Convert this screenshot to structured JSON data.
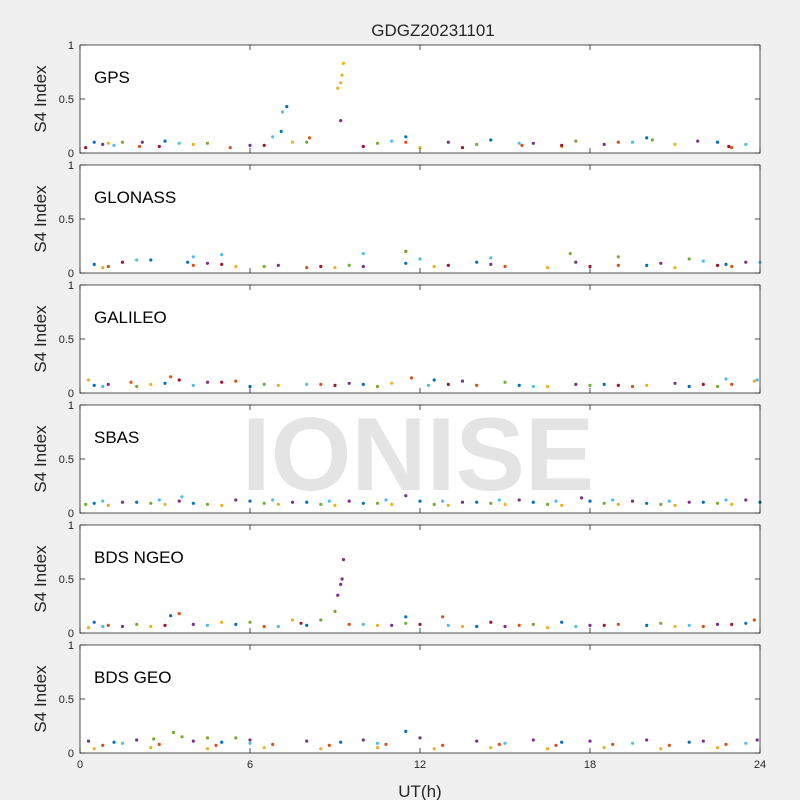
{
  "figure": {
    "title": "GDGZ20231101",
    "xlabel": "UT(h)",
    "watermark": "IONISE",
    "background": "#f0f0f0",
    "axes_background": "#ffffff"
  },
  "chart_data": [
    {
      "type": "scatter",
      "panel_label": "GPS",
      "ylabel": "S4 Index",
      "xlim": [
        0,
        24
      ],
      "ylim": [
        0,
        1
      ],
      "xticks": [
        0,
        6,
        12,
        18,
        24
      ],
      "yticks": [
        0,
        0.5,
        1
      ],
      "ytick_labels": [
        "0",
        "0.5",
        "1"
      ],
      "grid": false,
      "series": [
        {
          "color": "#0072BD",
          "x": [
            0.5,
            3,
            7.1,
            7.3,
            11.5,
            14.5,
            20,
            22.5
          ],
          "y": [
            0.1,
            0.11,
            0.2,
            0.43,
            0.15,
            0.12,
            0.14,
            0.1
          ]
        },
        {
          "color": "#D95319",
          "x": [
            2.1,
            5.3,
            8.1,
            11.5,
            15.6,
            19,
            23
          ],
          "y": [
            0.06,
            0.05,
            0.14,
            0.1,
            0.07,
            0.1,
            0.05
          ]
        },
        {
          "color": "#EDB120",
          "x": [
            1,
            4,
            7.5,
            9.1,
            9.2,
            9.25,
            9.3,
            12,
            17,
            21
          ],
          "y": [
            0.09,
            0.08,
            0.1,
            0.6,
            0.65,
            0.72,
            0.83,
            0.05,
            0.06,
            0.08
          ]
        },
        {
          "color": "#7E2F8E",
          "x": [
            0.8,
            2.2,
            6,
            9.2,
            13,
            16,
            18.5,
            21.8
          ],
          "y": [
            0.08,
            0.1,
            0.07,
            0.3,
            0.1,
            0.09,
            0.08,
            0.11
          ]
        },
        {
          "color": "#77AC30",
          "x": [
            1.5,
            4.5,
            8,
            10.5,
            14,
            17.5,
            20.2
          ],
          "y": [
            0.1,
            0.09,
            0.1,
            0.09,
            0.08,
            0.11,
            0.12
          ]
        },
        {
          "color": "#4DBEEE",
          "x": [
            1.2,
            3.5,
            6.8,
            7.15,
            11,
            15.5,
            19.5,
            23.5
          ],
          "y": [
            0.07,
            0.09,
            0.15,
            0.38,
            0.11,
            0.09,
            0.1,
            0.08
          ]
        },
        {
          "color": "#A2142F",
          "x": [
            0.2,
            2.8,
            6.5,
            10,
            13.5,
            17,
            22.9
          ],
          "y": [
            0.05,
            0.06,
            0.07,
            0.06,
            0.05,
            0.07,
            0.06
          ]
        }
      ]
    },
    {
      "type": "scatter",
      "panel_label": "GLONASS",
      "ylabel": "S4 Index",
      "xlim": [
        0,
        24
      ],
      "ylim": [
        0,
        1
      ],
      "xticks": [
        0,
        6,
        12,
        18,
        24
      ],
      "yticks": [
        0,
        0.5,
        1
      ],
      "ytick_labels": [
        "0",
        "0.5",
        "1"
      ],
      "grid": false,
      "series": [
        {
          "color": "#0072BD",
          "x": [
            0.5,
            2.5,
            3.8,
            11.5,
            14,
            20,
            22.8
          ],
          "y": [
            0.08,
            0.12,
            0.1,
            0.09,
            0.1,
            0.07,
            0.08
          ]
        },
        {
          "color": "#D95319",
          "x": [
            1,
            4,
            8,
            11.5,
            15,
            19,
            23
          ],
          "y": [
            0.06,
            0.07,
            0.05,
            0.2,
            0.06,
            0.07,
            0.06
          ]
        },
        {
          "color": "#EDB120",
          "x": [
            0.8,
            5.5,
            9,
            12.5,
            16.5,
            21
          ],
          "y": [
            0.05,
            0.06,
            0.05,
            0.06,
            0.05,
            0.05
          ]
        },
        {
          "color": "#7E2F8E",
          "x": [
            4.5,
            7,
            10,
            14.5,
            17.5,
            20.5,
            23.5
          ],
          "y": [
            0.09,
            0.07,
            0.06,
            0.08,
            0.1,
            0.09,
            0.1
          ]
        },
        {
          "color": "#77AC30",
          "x": [
            6.5,
            9.5,
            11.5,
            17.3,
            19,
            21.5
          ],
          "y": [
            0.06,
            0.07,
            0.2,
            0.18,
            0.15,
            0.13
          ]
        },
        {
          "color": "#4DBEEE",
          "x": [
            2,
            4,
            5,
            10,
            12,
            14.5,
            22,
            24
          ],
          "y": [
            0.12,
            0.15,
            0.17,
            0.18,
            0.13,
            0.14,
            0.11,
            0.1
          ]
        },
        {
          "color": "#A2142F",
          "x": [
            1.5,
            5,
            8.5,
            13,
            18,
            22.5
          ],
          "y": [
            0.1,
            0.08,
            0.06,
            0.07,
            0.06,
            0.07
          ]
        }
      ]
    },
    {
      "type": "scatter",
      "panel_label": "GALILEO",
      "ylabel": "S4 Index",
      "xlim": [
        0,
        24
      ],
      "ylim": [
        0,
        1
      ],
      "xticks": [
        0,
        6,
        12,
        18,
        24
      ],
      "yticks": [
        0,
        0.5,
        1
      ],
      "ytick_labels": [
        "0",
        "0.5",
        "1"
      ],
      "grid": false,
      "series": [
        {
          "color": "#0072BD",
          "x": [
            0.5,
            3,
            6,
            10,
            12.5,
            15.5,
            18.5,
            21.5
          ],
          "y": [
            0.07,
            0.09,
            0.06,
            0.08,
            0.12,
            0.07,
            0.08,
            0.06
          ]
        },
        {
          "color": "#D95319",
          "x": [
            1.8,
            3.2,
            5.5,
            8.5,
            11.7,
            14,
            19.5,
            23
          ],
          "y": [
            0.1,
            0.15,
            0.11,
            0.08,
            0.14,
            0.07,
            0.06,
            0.08
          ]
        },
        {
          "color": "#EDB120",
          "x": [
            0.3,
            2.5,
            7,
            11,
            16.5,
            20,
            23.8
          ],
          "y": [
            0.12,
            0.08,
            0.07,
            0.09,
            0.06,
            0.07,
            0.11
          ]
        },
        {
          "color": "#7E2F8E",
          "x": [
            1,
            4.5,
            9.5,
            13.5,
            17.5,
            21
          ],
          "y": [
            0.08,
            0.1,
            0.09,
            0.11,
            0.08,
            0.09
          ]
        },
        {
          "color": "#77AC30",
          "x": [
            2,
            6.5,
            10.5,
            15,
            18,
            22.5
          ],
          "y": [
            0.06,
            0.08,
            0.06,
            0.1,
            0.07,
            0.06
          ]
        },
        {
          "color": "#4DBEEE",
          "x": [
            0.8,
            4,
            8,
            12.3,
            16,
            22.8,
            23.9
          ],
          "y": [
            0.06,
            0.07,
            0.08,
            0.07,
            0.06,
            0.13,
            0.12
          ]
        },
        {
          "color": "#A2142F",
          "x": [
            3.5,
            5,
            9,
            13,
            19,
            22
          ],
          "y": [
            0.12,
            0.1,
            0.07,
            0.08,
            0.07,
            0.08
          ]
        }
      ]
    },
    {
      "type": "scatter",
      "panel_label": "SBAS",
      "ylabel": "S4 Index",
      "xlim": [
        0,
        24
      ],
      "ylim": [
        0,
        1
      ],
      "xticks": [
        0,
        6,
        12,
        18,
        24
      ],
      "yticks": [
        0,
        0.5,
        1
      ],
      "ytick_labels": [
        "0",
        "0.5",
        "1"
      ],
      "grid": false,
      "series": [
        {
          "color": "#0072BD",
          "x": [
            0.5,
            2,
            4,
            6,
            8,
            10,
            12,
            14,
            16,
            18,
            20,
            22,
            24
          ],
          "y": [
            0.09,
            0.1,
            0.09,
            0.11,
            0.1,
            0.09,
            0.11,
            0.1,
            0.1,
            0.11,
            0.09,
            0.1,
            0.1
          ]
        },
        {
          "color": "#EDB120",
          "x": [
            1,
            3,
            5,
            7,
            9,
            11,
            13,
            15,
            17,
            19,
            21,
            23
          ],
          "y": [
            0.07,
            0.08,
            0.07,
            0.08,
            0.07,
            0.08,
            0.07,
            0.08,
            0.07,
            0.08,
            0.07,
            0.08
          ]
        },
        {
          "color": "#7E2F8E",
          "x": [
            1.5,
            3.5,
            5.5,
            7.5,
            9.5,
            11.5,
            13.5,
            15.5,
            17.7,
            19.5,
            21.5,
            23.5
          ],
          "y": [
            0.1,
            0.11,
            0.12,
            0.1,
            0.11,
            0.16,
            0.1,
            0.12,
            0.14,
            0.11,
            0.1,
            0.12
          ]
        },
        {
          "color": "#77AC30",
          "x": [
            0.2,
            2.5,
            4.5,
            6.5,
            8.5,
            10.5,
            12.5,
            14.5,
            16.5,
            18.5,
            20.5,
            22.5
          ],
          "y": [
            0.08,
            0.09,
            0.08,
            0.09,
            0.08,
            0.09,
            0.08,
            0.09,
            0.08,
            0.09,
            0.08,
            0.09
          ]
        },
        {
          "color": "#4DBEEE",
          "x": [
            0.8,
            2.8,
            3.6,
            6.8,
            8.8,
            10.8,
            12.8,
            14.8,
            16.8,
            18.8,
            20.8,
            22.8
          ],
          "y": [
            0.11,
            0.12,
            0.15,
            0.12,
            0.11,
            0.12,
            0.11,
            0.12,
            0.11,
            0.12,
            0.11,
            0.12
          ]
        }
      ]
    },
    {
      "type": "scatter",
      "panel_label": "BDS NGEO",
      "ylabel": "S4 Index",
      "xlim": [
        0,
        24
      ],
      "ylim": [
        0,
        1
      ],
      "xticks": [
        0,
        6,
        12,
        18,
        24
      ],
      "yticks": [
        0,
        0.5,
        1
      ],
      "ytick_labels": [
        "0",
        "0.5",
        "1"
      ],
      "grid": false,
      "series": [
        {
          "color": "#0072BD",
          "x": [
            0.5,
            3.2,
            5.5,
            8,
            11.5,
            14,
            17,
            20,
            23.5
          ],
          "y": [
            0.1,
            0.16,
            0.08,
            0.07,
            0.15,
            0.06,
            0.1,
            0.07,
            0.09
          ]
        },
        {
          "color": "#D95319",
          "x": [
            1,
            3.5,
            6.5,
            9.5,
            12.8,
            15.5,
            19,
            22,
            23.8
          ],
          "y": [
            0.07,
            0.18,
            0.06,
            0.08,
            0.15,
            0.07,
            0.08,
            0.06,
            0.12
          ]
        },
        {
          "color": "#EDB120",
          "x": [
            0.3,
            2.5,
            5,
            7.5,
            10.5,
            13.5,
            16.5,
            21
          ],
          "y": [
            0.05,
            0.06,
            0.1,
            0.12,
            0.07,
            0.06,
            0.05,
            0.06
          ]
        },
        {
          "color": "#7E2F8E",
          "x": [
            1.5,
            4,
            9.1,
            9.2,
            9.25,
            9.3,
            11,
            15,
            18,
            22.5
          ],
          "y": [
            0.06,
            0.08,
            0.35,
            0.45,
            0.5,
            0.68,
            0.07,
            0.06,
            0.07,
            0.08
          ]
        },
        {
          "color": "#77AC30",
          "x": [
            2,
            6,
            8.5,
            9,
            11.5,
            16,
            20.5
          ],
          "y": [
            0.08,
            0.1,
            0.12,
            0.2,
            0.09,
            0.08,
            0.09
          ]
        },
        {
          "color": "#4DBEEE",
          "x": [
            0.8,
            4.5,
            7,
            10,
            13,
            17.5,
            21.5
          ],
          "y": [
            0.06,
            0.07,
            0.06,
            0.08,
            0.07,
            0.06,
            0.07
          ]
        },
        {
          "color": "#A2142F",
          "x": [
            3,
            7.8,
            12,
            14.5,
            18.5,
            23
          ],
          "y": [
            0.07,
            0.09,
            0.08,
            0.1,
            0.07,
            0.08
          ]
        }
      ]
    },
    {
      "type": "scatter",
      "panel_label": "BDS GEO",
      "ylabel": "S4 Index",
      "xlim": [
        0,
        24
      ],
      "ylim": [
        0,
        1
      ],
      "xticks": [
        0,
        6,
        12,
        18,
        24
      ],
      "yticks": [
        0,
        0.5,
        1
      ],
      "ytick_labels": [
        "0",
        "0.5",
        "1"
      ],
      "grid": false,
      "series": [
        {
          "color": "#7E2F8E",
          "x": [
            0.3,
            2,
            4,
            6,
            8,
            10,
            12,
            14,
            16,
            18,
            20,
            22,
            23.9
          ],
          "y": [
            0.11,
            0.12,
            0.11,
            0.12,
            0.11,
            0.12,
            0.14,
            0.11,
            0.12,
            0.11,
            0.12,
            0.11,
            0.12
          ]
        },
        {
          "color": "#EDB120",
          "x": [
            0.5,
            2.5,
            4.5,
            6.5,
            8.5,
            10.5,
            12.5,
            14.5,
            16.5,
            18.5,
            20.5,
            22.5
          ],
          "y": [
            0.04,
            0.05,
            0.04,
            0.05,
            0.04,
            0.05,
            0.04,
            0.05,
            0.04,
            0.05,
            0.04,
            0.05
          ]
        },
        {
          "color": "#D95319",
          "x": [
            0.8,
            2.8,
            4.8,
            6.8,
            8.8,
            10.8,
            12.8,
            14.8,
            16.8,
            18.8,
            20.8,
            22.8
          ],
          "y": [
            0.07,
            0.08,
            0.07,
            0.08,
            0.07,
            0.08,
            0.07,
            0.08,
            0.07,
            0.08,
            0.07,
            0.08
          ]
        },
        {
          "color": "#77AC30",
          "x": [
            2.6,
            3.3,
            3.6,
            4.5,
            5.5
          ],
          "y": [
            0.13,
            0.19,
            0.15,
            0.14,
            0.14
          ]
        },
        {
          "color": "#0072BD",
          "x": [
            1.2,
            5,
            9.2,
            11.5,
            17,
            21.5
          ],
          "y": [
            0.1,
            0.1,
            0.1,
            0.2,
            0.1,
            0.1
          ]
        },
        {
          "color": "#4DBEEE",
          "x": [
            1.5,
            6,
            10.5,
            15,
            19.5,
            23.5
          ],
          "y": [
            0.09,
            0.09,
            0.09,
            0.09,
            0.09,
            0.09
          ]
        }
      ]
    }
  ]
}
